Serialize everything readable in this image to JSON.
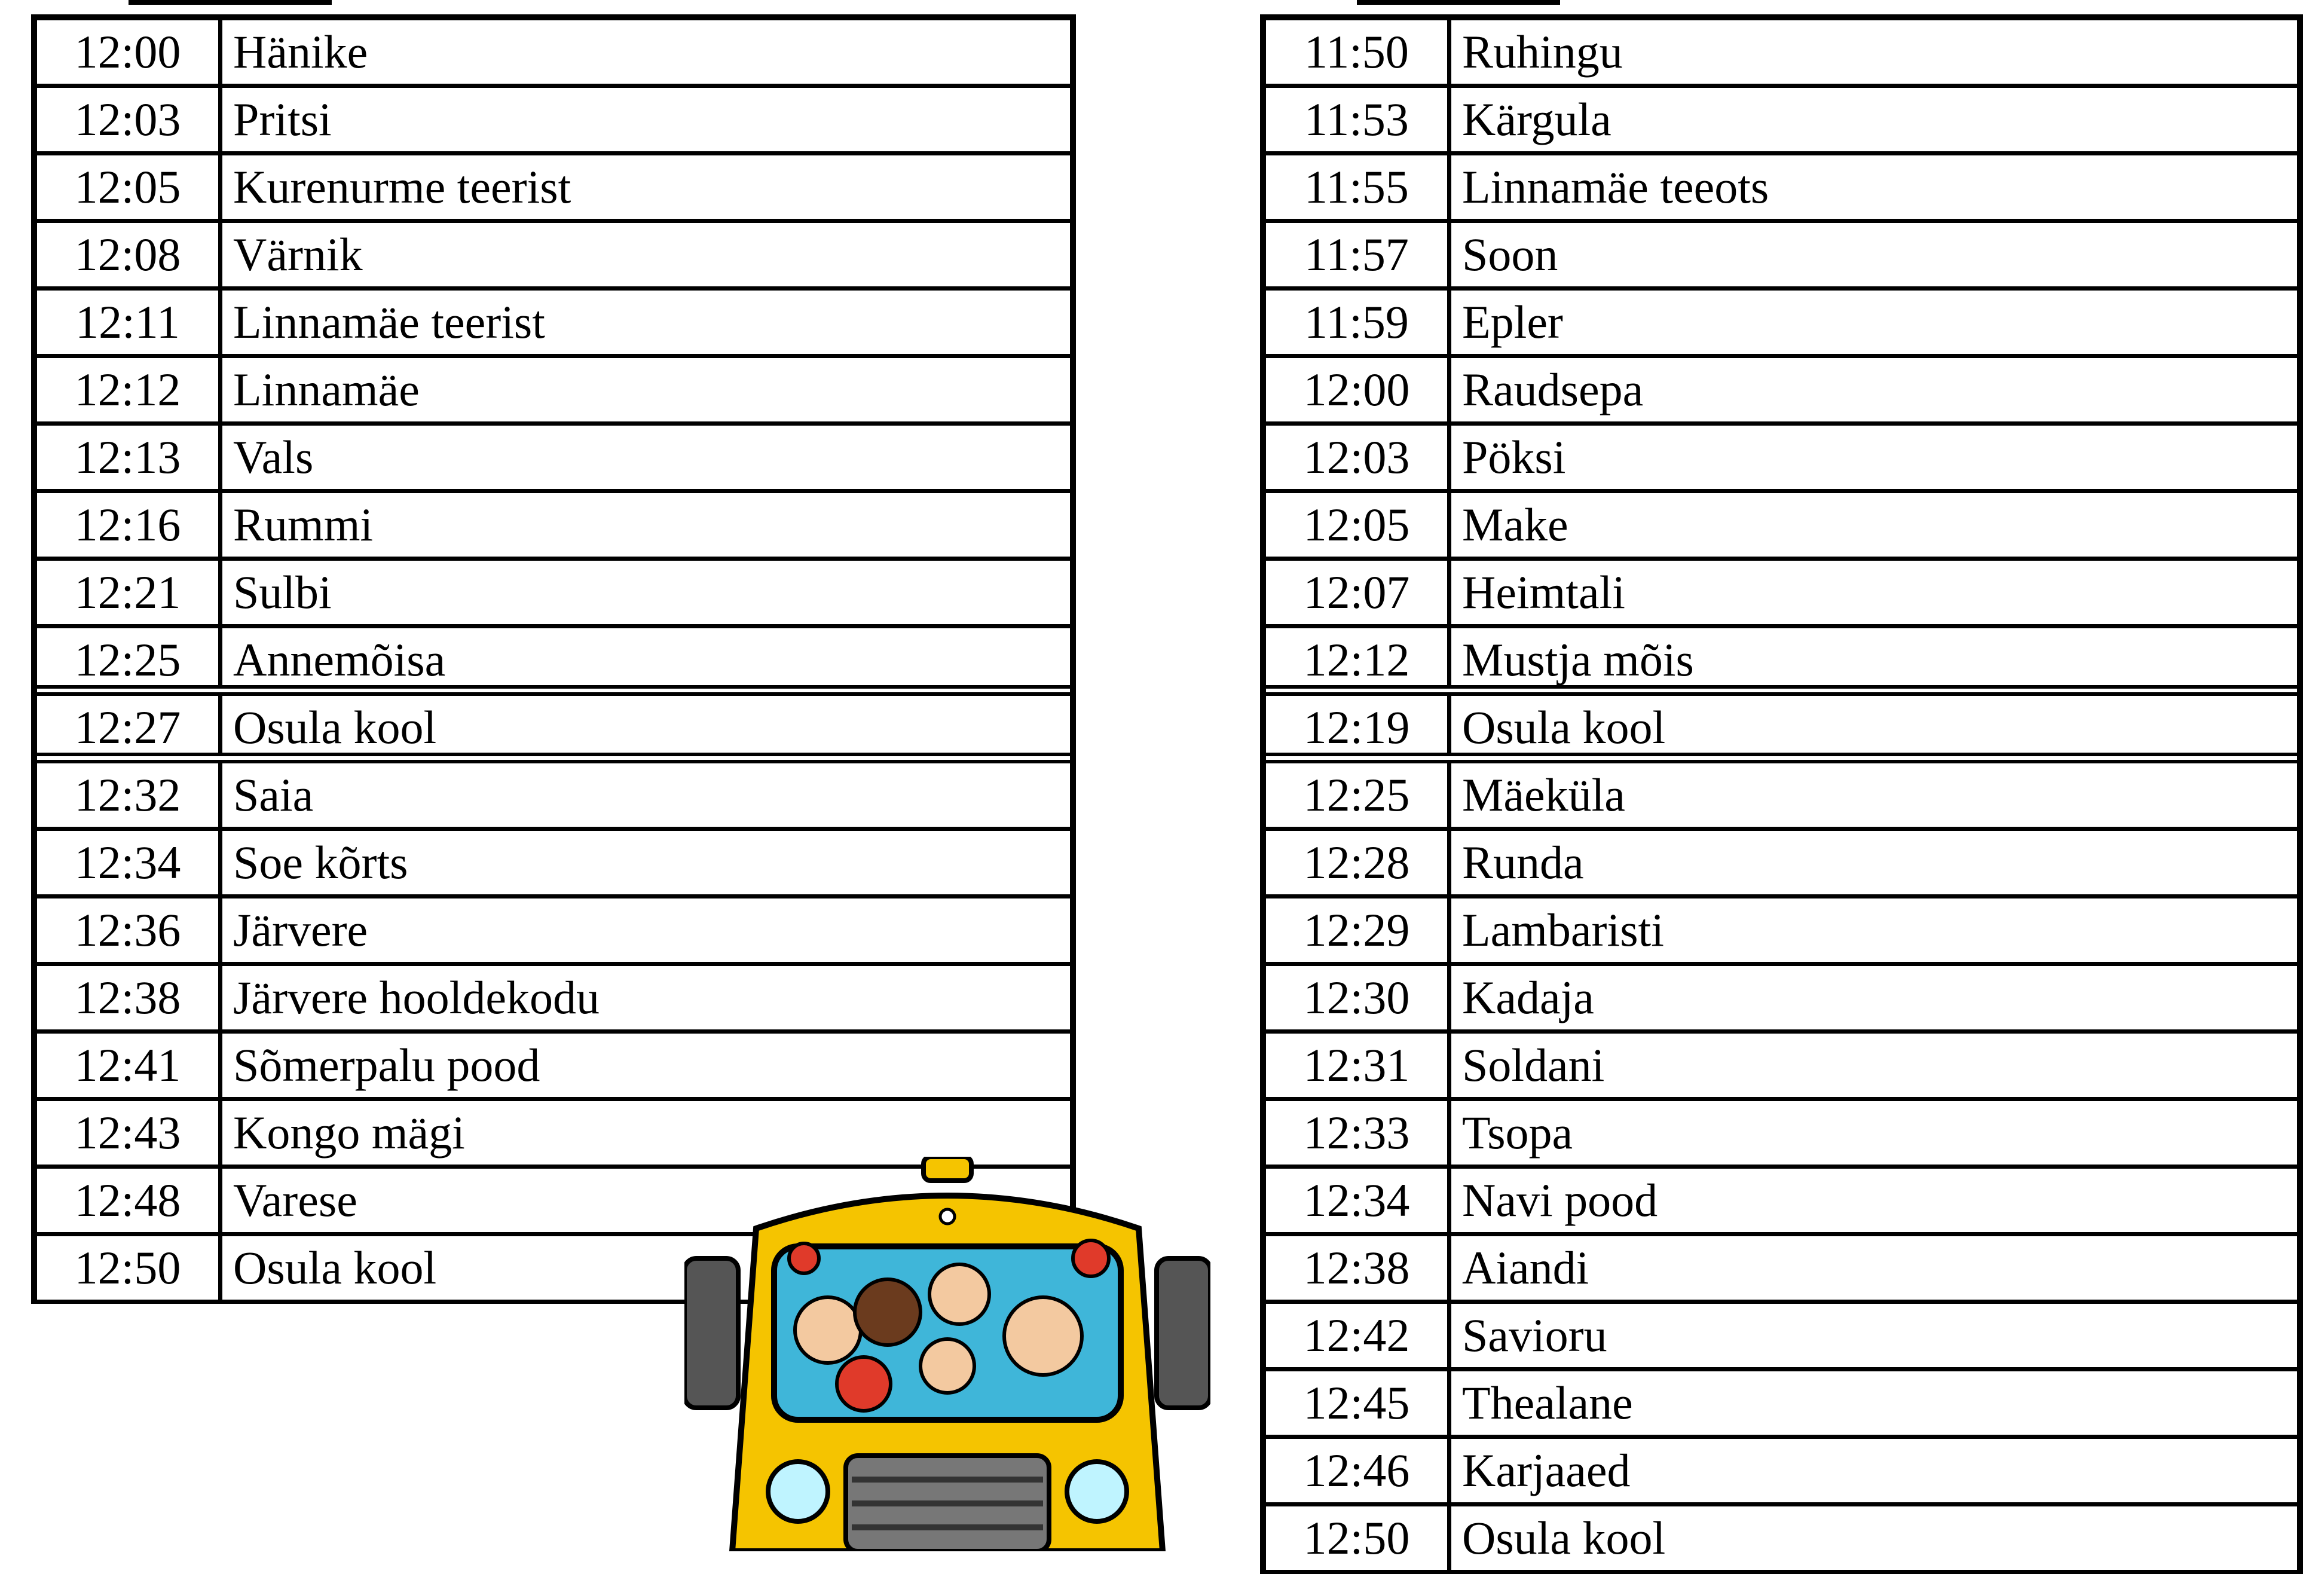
{
  "left_schedule": [
    {
      "time": "12:00",
      "stop": "Hänike"
    },
    {
      "time": "12:03",
      "stop": "Pritsi"
    },
    {
      "time": "12:05",
      "stop": "Kurenurme teerist"
    },
    {
      "time": "12:08",
      "stop": "Värnik"
    },
    {
      "time": "12:11",
      "stop": "Linnamäe teerist"
    },
    {
      "time": "12:12",
      "stop": "Linnamäe"
    },
    {
      "time": "12:13",
      "stop": "Vals"
    },
    {
      "time": "12:16",
      "stop": "Rummi"
    },
    {
      "time": "12:21",
      "stop": "Sulbi"
    },
    {
      "time": "12:25",
      "stop": "Annemõisa"
    },
    {
      "time": "12:27",
      "stop": "Osula kool"
    },
    {
      "time": "12:32",
      "stop": "Saia"
    },
    {
      "time": "12:34",
      "stop": "Soe kõrts"
    },
    {
      "time": "12:36",
      "stop": "Järvere"
    },
    {
      "time": "12:38",
      "stop": "Järvere hooldekodu"
    },
    {
      "time": "12:41",
      "stop": "Sõmerpalu pood"
    },
    {
      "time": "12:43",
      "stop": "Kongo mägi"
    },
    {
      "time": "12:48",
      "stop": "Varese"
    },
    {
      "time": "12:50",
      "stop": "Osula kool"
    }
  ],
  "right_schedule": [
    {
      "time": "11:50",
      "stop": "Ruhingu"
    },
    {
      "time": "11:53",
      "stop": "Kärgula"
    },
    {
      "time": "11:55",
      "stop": "Linnamäe teeots"
    },
    {
      "time": "11:57",
      "stop": "Soon"
    },
    {
      "time": "11:59",
      "stop": "Epler"
    },
    {
      "time": "12:00",
      "stop": "Raudsepa"
    },
    {
      "time": "12:03",
      "stop": "Pöksi"
    },
    {
      "time": "12:05",
      "stop": "Make"
    },
    {
      "time": "12:07",
      "stop": "Heimtali"
    },
    {
      "time": "12:12",
      "stop": "Mustja mõis"
    },
    {
      "time": "12:19",
      "stop": "Osula kool"
    },
    {
      "time": "12:25",
      "stop": "Mäeküla"
    },
    {
      "time": "12:28",
      "stop": "Runda"
    },
    {
      "time": "12:29",
      "stop": "Lambaristi"
    },
    {
      "time": "12:30",
      "stop": "Kadaja"
    },
    {
      "time": "12:31",
      "stop": "Soldani"
    },
    {
      "time": "12:33",
      "stop": "Tsopa"
    },
    {
      "time": "12:34",
      "stop": "Navi pood"
    },
    {
      "time": "12:38",
      "stop": "Aiandi"
    },
    {
      "time": "12:42",
      "stop": "Savioru"
    },
    {
      "time": "12:45",
      "stop": "Thealane"
    },
    {
      "time": "12:46",
      "stop": "Karjaaed"
    },
    {
      "time": "12:50",
      "stop": "Osula kool"
    }
  ],
  "double_rule_after_index": [
    9,
    10
  ],
  "illustration": {
    "icon": "school-bus-cartoon",
    "body_color": "#f5c400",
    "window_color": "#3fb6d9"
  }
}
